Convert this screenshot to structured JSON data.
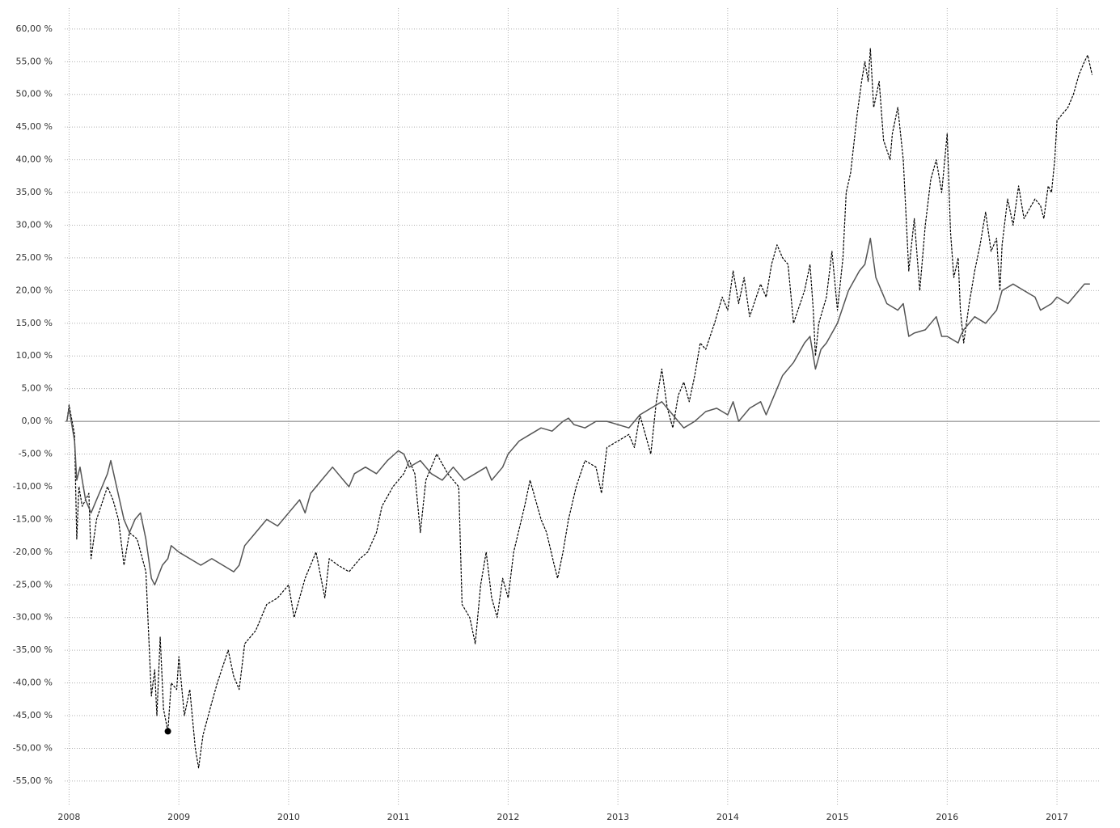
{
  "chart_data": {
    "type": "line",
    "xlim": [
      2007.96,
      2017.39
    ],
    "xticks": [
      2008,
      2009,
      2010,
      2011,
      2012,
      2013,
      2014,
      2015,
      2016,
      2017
    ],
    "ylim": [
      -58.6,
      63.2
    ],
    "yticks": [
      {
        "value": -55,
        "label": "-55,00 %"
      },
      {
        "value": -50,
        "label": "-50,00 %"
      },
      {
        "value": -45,
        "label": "-45,00 %"
      },
      {
        "value": -40,
        "label": "-40,00 %"
      },
      {
        "value": -35,
        "label": "-35,00 %"
      },
      {
        "value": -30,
        "label": "-30,00 %"
      },
      {
        "value": -25,
        "label": "-25,00 %"
      },
      {
        "value": -20,
        "label": "-20,00 %"
      },
      {
        "value": -15,
        "label": "-15,00 %"
      },
      {
        "value": -10,
        "label": "-10,00 %"
      },
      {
        "value": -5,
        "label": "-5,00 %"
      },
      {
        "value": 0,
        "label": "0,00 %"
      },
      {
        "value": 5,
        "label": "5,00 %"
      },
      {
        "value": 10,
        "label": "10,00 %"
      },
      {
        "value": 15,
        "label": "15,00 %"
      },
      {
        "value": 20,
        "label": "20,00 %"
      },
      {
        "value": 25,
        "label": "25,00 %"
      },
      {
        "value": 30,
        "label": "30,00 %"
      },
      {
        "value": 35,
        "label": "35,00 %"
      },
      {
        "value": 40,
        "label": "40,00 %"
      },
      {
        "value": 45,
        "label": "45,00 %"
      },
      {
        "value": 50,
        "label": "50,00 %"
      },
      {
        "value": 55,
        "label": "55,00 %"
      },
      {
        "value": 60,
        "label": "60,00 %"
      }
    ],
    "grid": true,
    "zero_line": true,
    "series": [
      {
        "color": "#000000",
        "dashed": true,
        "x": [
          2007.98,
          2008.0,
          2008.05,
          2008.07,
          2008.09,
          2008.12,
          2008.18,
          2008.2,
          2008.25,
          2008.35,
          2008.4,
          2008.45,
          2008.5,
          2008.55,
          2008.62,
          2008.7,
          2008.75,
          2008.78,
          2008.8,
          2008.83,
          2008.86,
          2008.9,
          2008.93,
          2008.98,
          2009.0,
          2009.05,
          2009.1,
          2009.15,
          2009.18,
          2009.22,
          2009.3,
          2009.35,
          2009.45,
          2009.5,
          2009.55,
          2009.6,
          2009.7,
          2009.8,
          2009.9,
          2010.0,
          2010.05,
          2010.1,
          2010.15,
          2010.25,
          2010.33,
          2010.37,
          2010.45,
          2010.55,
          2010.65,
          2010.72,
          2010.8,
          2010.85,
          2010.95,
          2011.05,
          2011.1,
          2011.15,
          2011.2,
          2011.25,
          2011.35,
          2011.45,
          2011.55,
          2011.58,
          2011.65,
          2011.7,
          2011.75,
          2011.8,
          2011.85,
          2011.9,
          2011.95,
          2012.0,
          2012.05,
          2012.15,
          2012.2,
          2012.3,
          2012.35,
          2012.42,
          2012.45,
          2012.5,
          2012.55,
          2012.62,
          2012.7,
          2012.8,
          2012.85,
          2012.9,
          2013.0,
          2013.1,
          2013.15,
          2013.2,
          2013.3,
          2013.35,
          2013.4,
          2013.45,
          2013.5,
          2013.55,
          2013.6,
          2013.65,
          2013.7,
          2013.75,
          2013.8,
          2013.88,
          2013.95,
          2014.0,
          2014.05,
          2014.1,
          2014.15,
          2014.2,
          2014.3,
          2014.35,
          2014.4,
          2014.45,
          2014.5,
          2014.55,
          2014.6,
          2014.7,
          2014.75,
          2014.78,
          2014.8,
          2014.83,
          2014.9,
          2014.95,
          2015.0,
          2015.05,
          2015.08,
          2015.12,
          2015.18,
          2015.22,
          2015.25,
          2015.28,
          2015.3,
          2015.33,
          2015.38,
          2015.42,
          2015.48,
          2015.5,
          2015.55,
          2015.6,
          2015.65,
          2015.7,
          2015.75,
          2015.8,
          2015.85,
          2015.9,
          2015.95,
          2016.0,
          2016.03,
          2016.06,
          2016.1,
          2016.12,
          2016.15,
          2016.2,
          2016.25,
          2016.3,
          2016.35,
          2016.4,
          2016.45,
          2016.48,
          2016.5,
          2016.55,
          2016.6,
          2016.65,
          2016.7,
          2016.8,
          2016.85,
          2016.88,
          2016.92,
          2016.95,
          2016.98,
          2017.0,
          2017.05,
          2017.1,
          2017.15,
          2017.2,
          2017.25,
          2017.28,
          2017.32
        ],
        "values": [
          0,
          2.5,
          -2,
          -18,
          -10,
          -13,
          -11,
          -21,
          -15,
          -10,
          -12,
          -15,
          -22,
          -17,
          -18,
          -23,
          -42,
          -38,
          -45,
          -33,
          -44,
          -47.4,
          -40,
          -41,
          -36,
          -45,
          -41,
          -50,
          -53,
          -48,
          -43,
          -40,
          -35,
          -39,
          -41,
          -34,
          -32,
          -28,
          -27,
          -25,
          -30,
          -27,
          -24,
          -20,
          -27,
          -21,
          -22,
          -23,
          -21,
          -20,
          -17,
          -13,
          -10,
          -8,
          -6,
          -8,
          -17,
          -9,
          -5,
          -8,
          -10,
          -28,
          -30,
          -34,
          -25,
          -20,
          -27,
          -30,
          -24,
          -27,
          -20,
          -13,
          -9,
          -15,
          -17,
          -22,
          -24,
          -20,
          -15,
          -10,
          -6,
          -7,
          -11,
          -4,
          -3,
          -2,
          -4,
          1,
          -5,
          3,
          8,
          2,
          -1,
          4,
          6,
          3,
          7,
          12,
          11,
          15,
          19,
          17,
          23,
          18,
          22,
          16,
          21,
          19,
          24,
          27,
          25,
          24,
          15,
          20,
          24,
          17,
          10,
          15,
          19,
          26,
          17,
          25,
          35,
          38,
          47,
          52,
          55,
          52,
          57,
          48,
          52,
          43,
          40,
          44,
          48,
          40,
          23,
          31,
          20,
          30,
          37,
          40,
          35,
          44,
          29,
          22,
          25,
          17,
          12,
          18,
          23,
          27,
          32,
          26,
          28,
          20,
          27,
          34,
          30,
          36,
          31,
          34,
          33,
          31,
          36,
          35,
          40,
          46,
          47,
          48,
          50,
          53,
          55,
          56,
          53
        ]
      },
      {
        "color": "#555555",
        "dashed": false,
        "x": [
          2007.98,
          2008.0,
          2008.05,
          2008.07,
          2008.1,
          2008.15,
          2008.2,
          2008.25,
          2008.3,
          2008.35,
          2008.38,
          2008.42,
          2008.5,
          2008.55,
          2008.6,
          2008.65,
          2008.7,
          2008.75,
          2008.78,
          2008.85,
          2008.9,
          2008.93,
          2009.0,
          2009.1,
          2009.2,
          2009.3,
          2009.4,
          2009.5,
          2009.55,
          2009.6,
          2009.7,
          2009.8,
          2009.9,
          2010.0,
          2010.1,
          2010.15,
          2010.2,
          2010.3,
          2010.4,
          2010.45,
          2010.55,
          2010.6,
          2010.7,
          2010.8,
          2010.9,
          2011.0,
          2011.05,
          2011.1,
          2011.2,
          2011.3,
          2011.4,
          2011.5,
          2011.55,
          2011.6,
          2011.7,
          2011.8,
          2011.85,
          2011.9,
          2011.95,
          2012.0,
          2012.1,
          2012.2,
          2012.3,
          2012.4,
          2012.5,
          2012.55,
          2012.6,
          2012.7,
          2012.8,
          2012.9,
          2013.0,
          2013.1,
          2013.2,
          2013.3,
          2013.4,
          2013.5,
          2013.6,
          2013.7,
          2013.8,
          2013.9,
          2014.0,
          2014.05,
          2014.1,
          2014.2,
          2014.3,
          2014.35,
          2014.4,
          2014.45,
          2014.5,
          2014.6,
          2014.7,
          2014.75,
          2014.78,
          2014.8,
          2014.85,
          2014.9,
          2015.0,
          2015.1,
          2015.2,
          2015.25,
          2015.3,
          2015.35,
          2015.4,
          2015.45,
          2015.55,
          2015.6,
          2015.65,
          2015.7,
          2015.8,
          2015.9,
          2015.95,
          2016.0,
          2016.1,
          2016.12,
          2016.15,
          2016.25,
          2016.35,
          2016.45,
          2016.5,
          2016.6,
          2016.7,
          2016.8,
          2016.85,
          2016.95,
          2017.0,
          2017.1,
          2017.2,
          2017.25,
          2017.3
        ],
        "values": [
          0,
          2,
          -3,
          -9,
          -7,
          -12,
          -14,
          -12,
          -10,
          -8,
          -6,
          -9,
          -15,
          -17,
          -15,
          -14,
          -18,
          -24,
          -25,
          -22,
          -21,
          -19,
          -20,
          -21,
          -22,
          -21,
          -22,
          -23,
          -22,
          -19,
          -17,
          -15,
          -16,
          -14,
          -12,
          -14,
          -11,
          -9,
          -7,
          -8,
          -10,
          -8,
          -7,
          -8,
          -6,
          -4.5,
          -5,
          -7,
          -6,
          -8,
          -9,
          -7,
          -8,
          -9,
          -8,
          -7,
          -9,
          -8,
          -7,
          -5,
          -3,
          -2,
          -1,
          -1.5,
          0,
          0.5,
          -0.5,
          -1,
          0,
          0,
          -0.5,
          -1,
          1,
          2,
          3,
          1,
          -1,
          0,
          1.5,
          2,
          1,
          3,
          0,
          2,
          3,
          1,
          3,
          5,
          7,
          9,
          12,
          13,
          10,
          8,
          11,
          12,
          15,
          20,
          23,
          24,
          28,
          22,
          20,
          18,
          17,
          18,
          13,
          13.5,
          14,
          16,
          13,
          13,
          12,
          13,
          14,
          16,
          15,
          17,
          20,
          21,
          20,
          19,
          17,
          18,
          19,
          18,
          20,
          21,
          21
        ]
      }
    ],
    "marker": {
      "x": 2008.9,
      "y": -47.4,
      "color": "#000000"
    }
  }
}
